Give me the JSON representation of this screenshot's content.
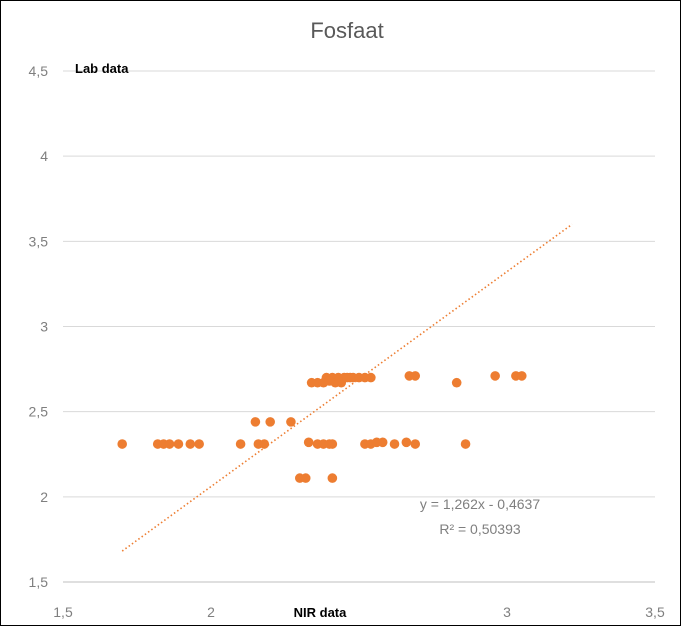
{
  "chart_data": {
    "type": "scatter",
    "title": "Fosfaat",
    "xlabel": "NIR data",
    "ylabel": "Lab data",
    "xlim": [
      1.5,
      3.5
    ],
    "ylim": [
      1.5,
      4.5
    ],
    "xticks": [
      "1,5",
      "2",
      "3",
      "3,5"
    ],
    "xtick_values": [
      1.5,
      2,
      3,
      3.5
    ],
    "yticks": [
      "1,5",
      "2",
      "2,5",
      "3",
      "3,5",
      "4",
      "4,5"
    ],
    "ytick_values": [
      1.5,
      2,
      2.5,
      3,
      3.5,
      4,
      4.5
    ],
    "grid": "horizontal",
    "marker_color": "#ED7D31",
    "trendline": {
      "slope": 1.262,
      "intercept": -0.4637,
      "x_range": [
        1.7,
        3.22
      ],
      "color": "#ED7D31",
      "style": "dotted",
      "equation": "y = 1,262x - 0,4637",
      "r_squared": "R² = 0,50393"
    },
    "points": [
      {
        "x": 1.7,
        "y": 2.31
      },
      {
        "x": 1.82,
        "y": 2.31
      },
      {
        "x": 1.84,
        "y": 2.31
      },
      {
        "x": 1.86,
        "y": 2.31
      },
      {
        "x": 1.89,
        "y": 2.31
      },
      {
        "x": 1.93,
        "y": 2.31
      },
      {
        "x": 1.96,
        "y": 2.31
      },
      {
        "x": 2.1,
        "y": 2.31
      },
      {
        "x": 2.15,
        "y": 2.44
      },
      {
        "x": 2.16,
        "y": 2.31
      },
      {
        "x": 2.18,
        "y": 2.31
      },
      {
        "x": 2.2,
        "y": 2.44
      },
      {
        "x": 2.27,
        "y": 2.44
      },
      {
        "x": 2.3,
        "y": 2.11
      },
      {
        "x": 2.32,
        "y": 2.11
      },
      {
        "x": 2.33,
        "y": 2.32
      },
      {
        "x": 2.36,
        "y": 2.31
      },
      {
        "x": 2.38,
        "y": 2.31
      },
      {
        "x": 2.4,
        "y": 2.31
      },
      {
        "x": 2.41,
        "y": 2.31
      },
      {
        "x": 2.41,
        "y": 2.11
      },
      {
        "x": 2.34,
        "y": 2.67
      },
      {
        "x": 2.36,
        "y": 2.67
      },
      {
        "x": 2.38,
        "y": 2.67
      },
      {
        "x": 2.39,
        "y": 2.7
      },
      {
        "x": 2.41,
        "y": 2.7
      },
      {
        "x": 2.42,
        "y": 2.67
      },
      {
        "x": 2.43,
        "y": 2.7
      },
      {
        "x": 2.44,
        "y": 2.67
      },
      {
        "x": 2.45,
        "y": 2.7
      },
      {
        "x": 2.47,
        "y": 2.7
      },
      {
        "x": 2.48,
        "y": 2.7
      },
      {
        "x": 2.5,
        "y": 2.7
      },
      {
        "x": 2.52,
        "y": 2.7
      },
      {
        "x": 2.54,
        "y": 2.7
      },
      {
        "x": 2.46,
        "y": 2.7
      },
      {
        "x": 2.43,
        "y": 2.68
      },
      {
        "x": 2.4,
        "y": 2.68
      },
      {
        "x": 2.52,
        "y": 2.31
      },
      {
        "x": 2.54,
        "y": 2.31
      },
      {
        "x": 2.56,
        "y": 2.32
      },
      {
        "x": 2.58,
        "y": 2.32
      },
      {
        "x": 2.62,
        "y": 2.31
      },
      {
        "x": 2.66,
        "y": 2.32
      },
      {
        "x": 2.69,
        "y": 2.31
      },
      {
        "x": 2.67,
        "y": 2.71
      },
      {
        "x": 2.69,
        "y": 2.71
      },
      {
        "x": 2.83,
        "y": 2.67
      },
      {
        "x": 2.86,
        "y": 2.31
      },
      {
        "x": 2.96,
        "y": 2.71
      },
      {
        "x": 3.03,
        "y": 2.71
      },
      {
        "x": 3.05,
        "y": 2.71
      }
    ]
  }
}
